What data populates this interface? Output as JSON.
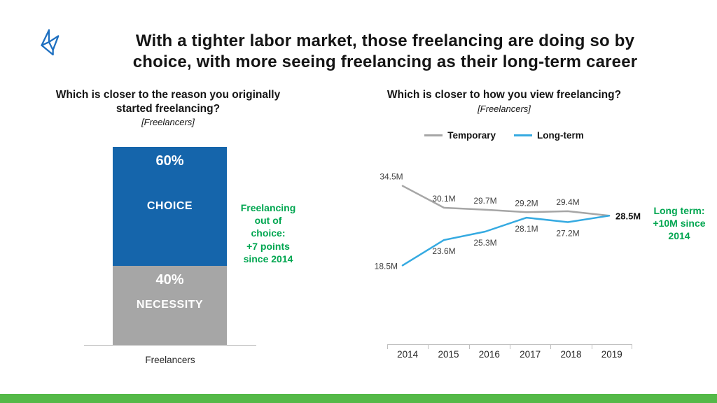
{
  "slide": {
    "title": "With a tighter labor market, those freelancing are doing so by\nchoice, with more seeing freelancing as their long-term career"
  },
  "colors": {
    "choice_blue": "#1565ab",
    "necessity_gray": "#a6a6a6",
    "temporary_gray": "#a6a6a6",
    "longterm_blue": "#35aae1",
    "annotation_green": "#00a650",
    "footer_green": "#54b948",
    "logo_blue": "#1d6fc0"
  },
  "left_chart": {
    "title": "Which is closer to the reason you originally\nstarted freelancing?",
    "subtitle": "[Freelancers]",
    "segments": [
      {
        "pct": "60%",
        "label": "CHOICE"
      },
      {
        "pct": "40%",
        "label": "NECESSITY"
      }
    ],
    "x_label": "Freelancers",
    "annotation": "Freelancing\nout of\nchoice:\n+7 points\nsince 2014"
  },
  "right_chart": {
    "title": "Which is closer to how you view freelancing?",
    "subtitle": "[Freelancers]",
    "annotation": "Long term:\n+10M since\n2014"
  },
  "chart_data": [
    {
      "type": "bar",
      "stacked": true,
      "title": "Which is closer to the reason you originally started freelancing?",
      "categories": [
        "Freelancers"
      ],
      "series": [
        {
          "name": "CHOICE",
          "values": [
            60
          ],
          "color": "#1565ab"
        },
        {
          "name": "NECESSITY",
          "values": [
            40
          ],
          "color": "#a6a6a6"
        }
      ],
      "unit": "%",
      "annotation": "Freelancing out of choice: +7 points since 2014"
    },
    {
      "type": "line",
      "title": "Which is closer to how you view freelancing?",
      "x": [
        2014,
        2015,
        2016,
        2017,
        2018,
        2019
      ],
      "series": [
        {
          "name": "Temporary",
          "values": [
            34.5,
            30.1,
            29.7,
            29.2,
            29.4,
            28.5
          ],
          "color": "#a6a6a6"
        },
        {
          "name": "Long-term",
          "values": [
            18.5,
            23.6,
            25.3,
            28.1,
            27.2,
            28.5
          ],
          "color": "#35aae1"
        }
      ],
      "unit": "M",
      "ylim": [
        17,
        36
      ],
      "grid": false,
      "legend_position": "top",
      "annotation": "Long term: +10M since 2014"
    }
  ]
}
